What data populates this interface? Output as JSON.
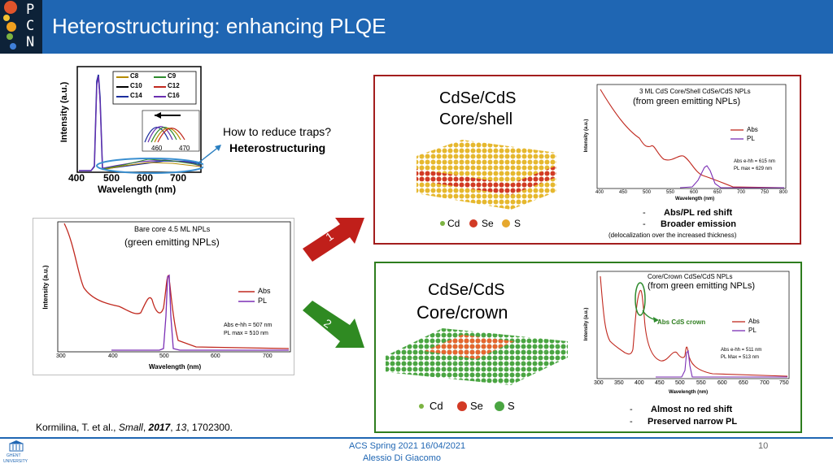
{
  "header": {
    "logo_letters": [
      "P",
      "C",
      "N"
    ],
    "title": "Heterostructuring: enhancing PLQE",
    "bar_color": "#1f66b3"
  },
  "top_left_chart": {
    "ylabel": "Intensity (a.u.)",
    "xlabel": "Wavelength (nm)",
    "x_ticks": [
      "400",
      "500",
      "600",
      "700"
    ],
    "legend": [
      "C8",
      "C9",
      "C10",
      "C12",
      "C14",
      "C16"
    ],
    "inset_ticks": [
      "460",
      "470"
    ]
  },
  "question": {
    "line1": "How to reduce traps?",
    "line2": "Heterostructuring"
  },
  "bare_core_chart": {
    "title1": "Bare core 4.5 ML NPLs",
    "title2": "(green emitting NPLs)",
    "ylabel": "Intensity (a.u.)",
    "xlabel": "Wavelength (nm)",
    "legend_abs": "Abs",
    "legend_pl": "PL",
    "note1": "Abs e-hh = 507 nm",
    "note2": "PL max = 510 nm",
    "x_ticks": [
      "300",
      "400",
      "500",
      "600",
      "700"
    ]
  },
  "arrows": {
    "one": "1",
    "two": "2"
  },
  "shell": {
    "title1": "CdSe/CdS",
    "title2": "Core/shell",
    "legend": [
      "Cd",
      "Se",
      "S"
    ],
    "chart_title1": "3 ML CdS Core/Shell CdSe/CdS NPLs",
    "chart_title2": "(from green emitting NPLs)",
    "ylabel": "Intensity (a.u.)",
    "xlabel": "Wavelength (nm)",
    "legend_abs": "Abs",
    "legend_pl": "PL",
    "note1": "Abs e-hh = 615 nm",
    "note2": "PL max = 629 nm",
    "x_ticks": [
      "400",
      "450",
      "500",
      "550",
      "600",
      "650",
      "700",
      "750",
      "800"
    ],
    "bullet1": "Abs/PL red shift",
    "bullet2": "Broader emission",
    "bullet_note": "(delocalization over the increased thickness)"
  },
  "crown": {
    "title1": "CdSe/CdS",
    "title2": "Core/crown",
    "legend": [
      "Cd",
      "Se",
      "S"
    ],
    "chart_title1": "Core/Crown CdSe/CdS NPLs",
    "chart_title2": "(from green emitting NPLs)",
    "ylabel": "Intensity (a.u.)",
    "xlabel": "Wavelength (nm)",
    "crown_label": "Abs CdS crown",
    "legend_abs": "Abs",
    "legend_pl": "PL",
    "note1": "Abs e-hh = 511 nm",
    "note2": "PL Max = 513 nm",
    "x_ticks": [
      "300",
      "350",
      "400",
      "450",
      "500",
      "550",
      "600",
      "650",
      "700",
      "750"
    ],
    "bullet1": "Almost no red shift",
    "bullet2": "Preserved narrow PL"
  },
  "citation": {
    "authors": "Kormilina, T. et al., ",
    "journal": "Small",
    "year": "2017",
    "volume": "13",
    "pages": ", 1702300."
  },
  "footer": {
    "line1": "ACS Spring 2021 16/04/2021",
    "line2": "Alessio Di Giacomo",
    "page": "10",
    "university1": "GHENT",
    "university2": "UNIVERSITY"
  },
  "colors": {
    "abs": "#c0281e",
    "pl": "#7b2fb5",
    "red_frame": "#a31d1d",
    "green_frame": "#2e7d1e",
    "arrow_red": "#c01f1a",
    "arrow_green": "#2f8a22"
  }
}
